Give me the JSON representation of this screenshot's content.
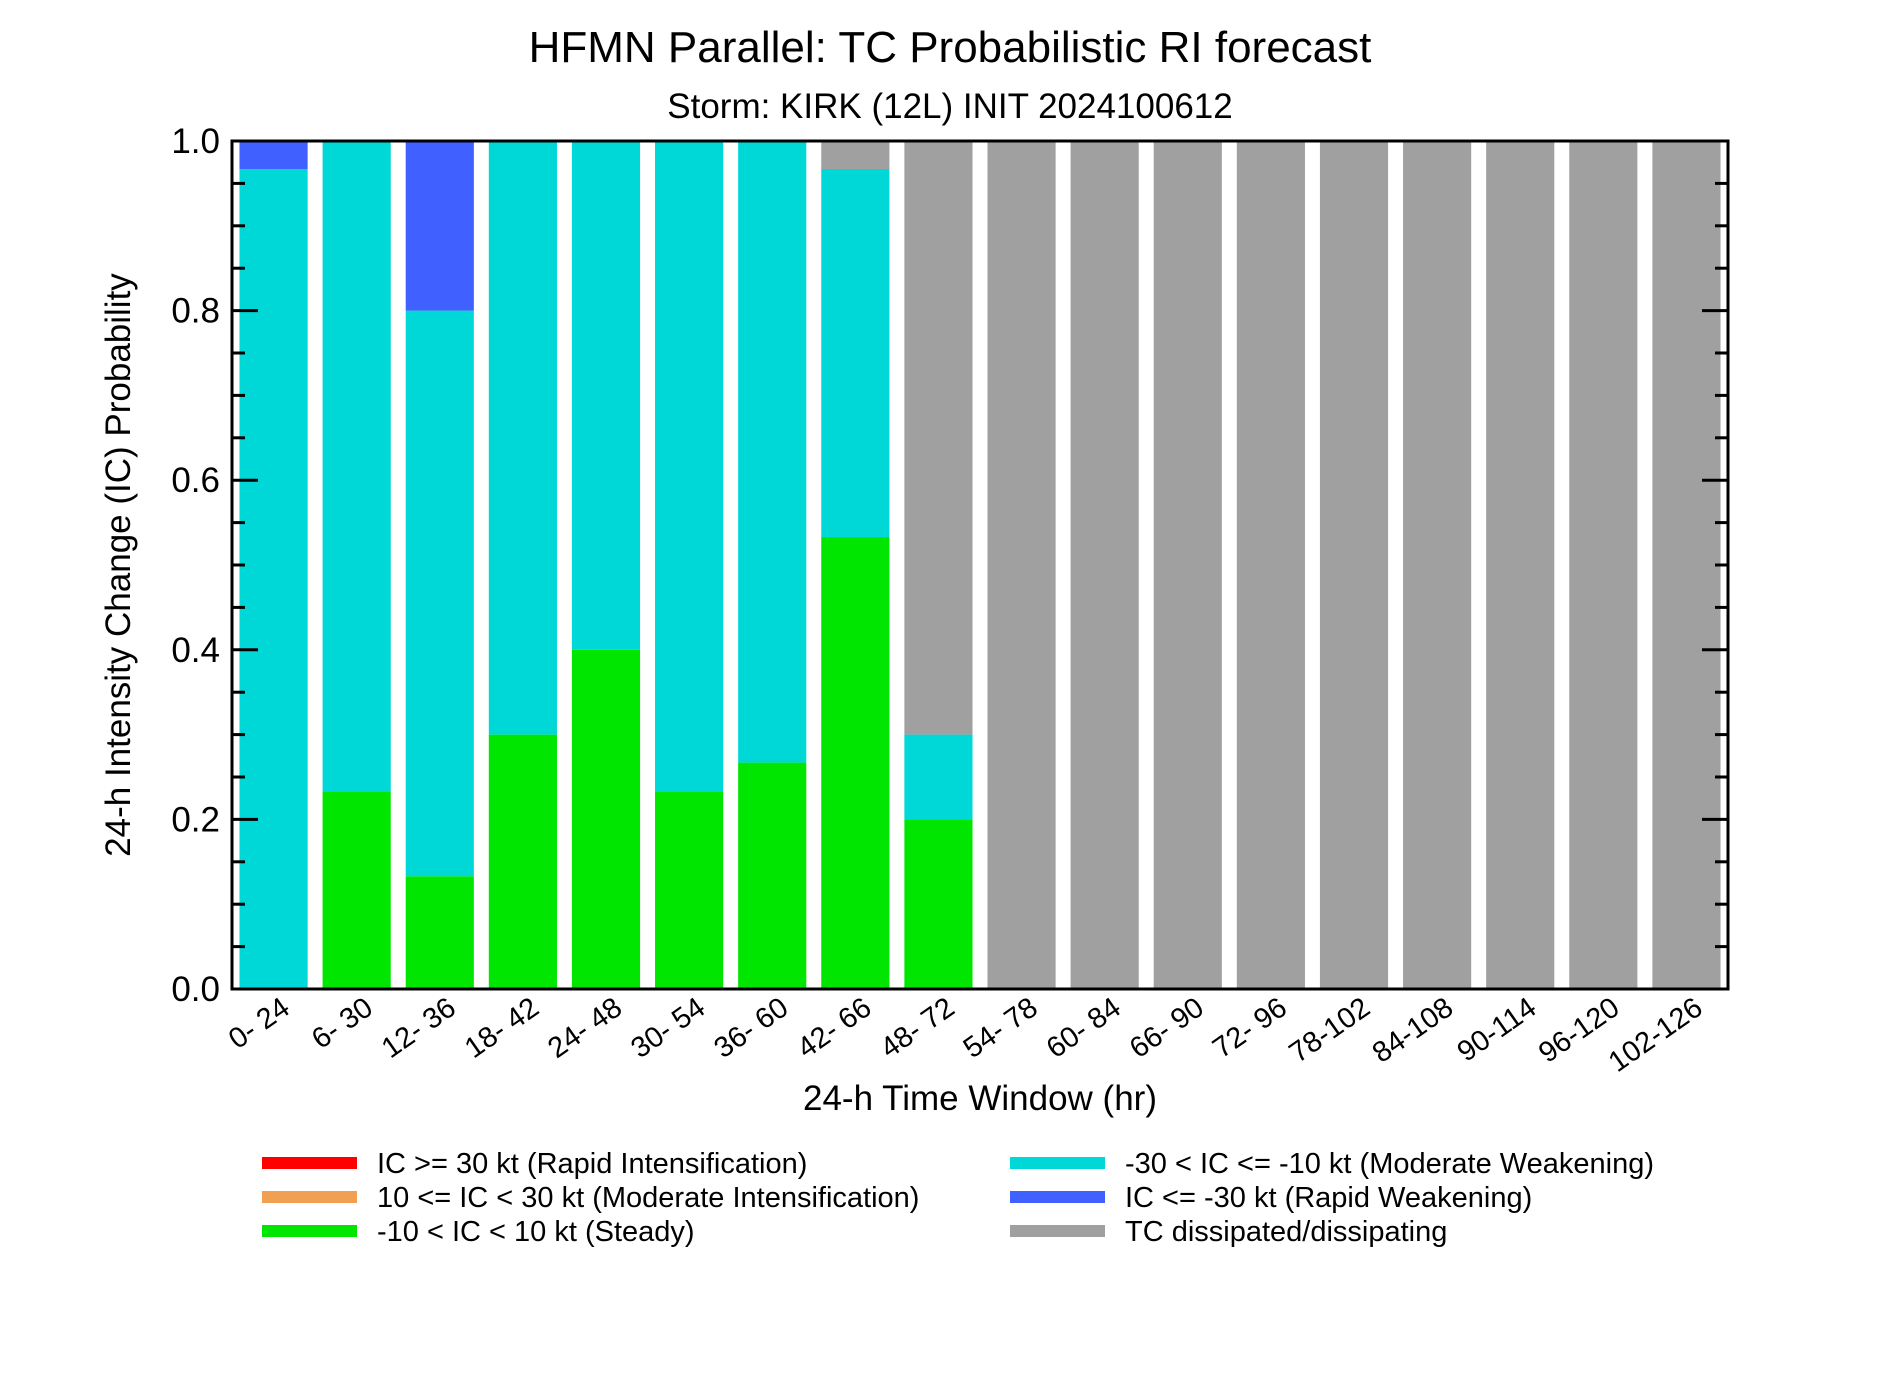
{
  "chart_data": {
    "type": "bar",
    "stacked": true,
    "title": "HFMN Parallel: TC Probabilistic RI forecast",
    "subtitle": "Storm: KIRK (12L) INIT 2024100612",
    "xlabel": "24-h Time Window (hr)",
    "ylabel": "24-h Intensity Change (IC) Probability",
    "ylim": [
      0,
      1
    ],
    "yticks": [
      "0.0",
      "0.2",
      "0.4",
      "0.6",
      "0.8",
      "1.0"
    ],
    "categories": [
      "0- 24",
      "6- 30",
      "12- 36",
      "18- 42",
      "24- 48",
      "30- 54",
      "36- 60",
      "42- 66",
      "48- 72",
      "54- 78",
      "60- 84",
      "66- 90",
      "72- 96",
      "78-102",
      "84-108",
      "90-114",
      "96-120",
      "102-126"
    ],
    "series": [
      {
        "name": "IC >= 30 kt (Rapid Intensification)",
        "color": "#ff0000",
        "values": [
          0,
          0,
          0,
          0,
          0,
          0,
          0,
          0,
          0,
          0,
          0,
          0,
          0,
          0,
          0,
          0,
          0,
          0
        ]
      },
      {
        "name": "10 <= IC < 30 kt (Moderate Intensification)",
        "color": "#f0a050",
        "values": [
          0,
          0,
          0,
          0,
          0,
          0,
          0,
          0,
          0,
          0,
          0,
          0,
          0,
          0,
          0,
          0,
          0,
          0
        ]
      },
      {
        "name": "-10 < IC < 10 kt (Steady)",
        "color": "#00e600",
        "values": [
          0,
          0.233,
          0.133,
          0.3,
          0.4,
          0.233,
          0.267,
          0.533,
          0.2,
          0,
          0,
          0,
          0,
          0,
          0,
          0,
          0,
          0
        ]
      },
      {
        "name": "-30 < IC <= -10 kt (Moderate Weakening)",
        "color": "#00d8d8",
        "values": [
          0.967,
          0.767,
          0.667,
          0.7,
          0.6,
          0.767,
          0.733,
          0.434,
          0.1,
          0,
          0,
          0,
          0,
          0,
          0,
          0,
          0,
          0
        ]
      },
      {
        "name": "IC <= -30 kt (Rapid Weakening)",
        "color": "#4060ff",
        "values": [
          0.033,
          0,
          0.2,
          0,
          0,
          0,
          0,
          0,
          0,
          0,
          0,
          0,
          0,
          0,
          0,
          0,
          0,
          0
        ]
      },
      {
        "name": "TC dissipated/dissipating",
        "color": "#a0a0a0",
        "values": [
          0,
          0,
          0,
          0,
          0,
          0,
          0,
          0.033,
          0.7,
          1,
          1,
          1,
          1,
          1,
          1,
          1,
          1,
          1
        ]
      }
    ],
    "legend": {
      "placement": "bottom",
      "columns": 2
    }
  }
}
